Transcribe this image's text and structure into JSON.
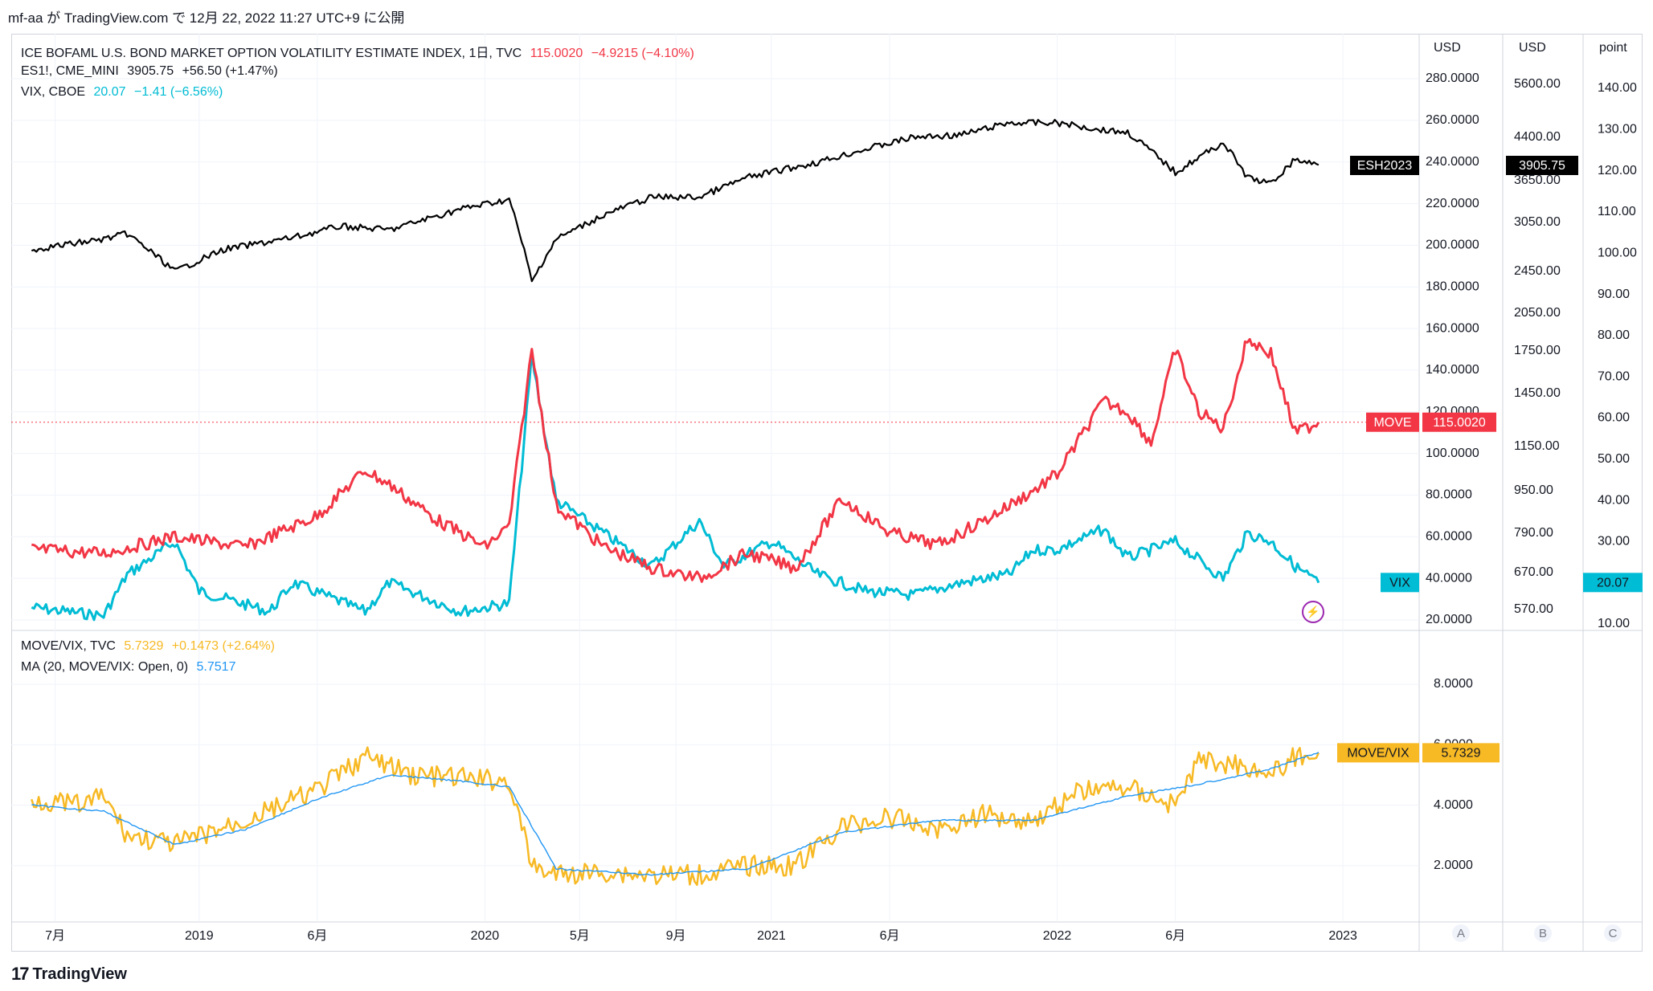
{
  "header": {
    "text": "mf-aa が TradingView.com で 12月 22, 2022 11:27 UTC+9 に公開"
  },
  "legend": {
    "move": {
      "name": "ICE BOFAML U.S. BOND MARKET OPTION VOLATILITY ESTIMATE INDEX, 1日, TVC",
      "value": "115.0020",
      "change": "−4.9215 (−4.10%)"
    },
    "es": {
      "name": "ES1!, CME_MINI",
      "value": "3905.75",
      "change": "+56.50 (+1.47%)"
    },
    "vix": {
      "name": "VIX, CBOE",
      "value": "20.07",
      "change": "−1.41 (−6.56%)"
    },
    "ratio": {
      "name": "MOVE/VIX, TVC",
      "value": "5.7329",
      "change": "+0.1473 (+2.64%)"
    },
    "ma": {
      "name": "MA (20, MOVE/VIX: Open, 0)",
      "value": "5.7517"
    }
  },
  "footer": {
    "brand": "TradingView"
  },
  "colors": {
    "es": "#000000",
    "move": "#f23645",
    "vix": "#00bcd4",
    "ratio": "#f7b924",
    "ma": "#2196f3",
    "grid": "#f0f3fa",
    "axis": "#d1d4dc"
  },
  "chart_data": [
    {
      "type": "line",
      "title": "",
      "scales": {
        "A": {
          "unit": "USD",
          "ticks": [
            "280.0000",
            "260.0000",
            "240.0000",
            "220.0000",
            "200.0000",
            "180.0000",
            "160.0000",
            "140.0000",
            "120.0000",
            "100.0000",
            "80.0000",
            "60.0000",
            "40.0000",
            "20.0000"
          ],
          "ylim": [
            20,
            280
          ]
        },
        "B": {
          "unit": "USD",
          "scale": "log",
          "ticks": [
            "5600.00",
            "4400.00",
            "3650.00",
            "3050.00",
            "2450.00",
            "2050.00",
            "1750.00",
            "1450.00",
            "1150.00",
            "950.00",
            "790.00",
            "670.00",
            "570.00"
          ]
        },
        "C": {
          "unit": "point",
          "ticks": [
            "140.00",
            "130.00",
            "120.00",
            "110.00",
            "100.00",
            "90.00",
            "80.00",
            "70.00",
            "60.00",
            "50.00",
            "40.00",
            "30.00",
            "20.00",
            "10.00"
          ],
          "ylim": [
            10,
            140
          ]
        }
      },
      "x_ticks": [
        "7月",
        "2019",
        "6月",
        "2020",
        "5月",
        "9月",
        "2021",
        "6月",
        "2022",
        "6月",
        "2023"
      ],
      "series": [
        {
          "name": "ESH2023",
          "scale": "B",
          "label": "3905.75",
          "x": [
            "2018-06",
            "2018-09",
            "2018-10",
            "2018-12",
            "2019-02",
            "2019-05",
            "2019-07",
            "2019-09",
            "2019-12",
            "2020-02",
            "2020-03",
            "2020-04",
            "2020-06",
            "2020-08",
            "2020-10",
            "2020-12",
            "2021-03",
            "2021-05",
            "2021-07",
            "2021-09",
            "2021-11",
            "2022-01",
            "2022-03",
            "2022-04",
            "2022-06",
            "2022-08",
            "2022-09",
            "2022-10",
            "2022-11",
            "2022-12"
          ],
          "values": [
            2700,
            2830,
            2900,
            2450,
            2700,
            2850,
            3000,
            2950,
            3230,
            3370,
            2340,
            2830,
            3150,
            3400,
            3400,
            3700,
            3950,
            4180,
            4400,
            4450,
            4700,
            4700,
            4550,
            4500,
            3780,
            4300,
            3700,
            3600,
            4000,
            3906
          ]
        },
        {
          "name": "MOVE",
          "scale": "A",
          "label": "115.0020",
          "x": [
            "2018-06",
            "2018-09",
            "2018-12",
            "2019-03",
            "2019-06",
            "2019-08",
            "2019-09",
            "2019-11",
            "2020-01",
            "2020-02",
            "2020-03",
            "2020-04",
            "2020-06",
            "2020-08",
            "2020-10",
            "2020-12",
            "2021-02",
            "2021-04",
            "2021-06",
            "2021-08",
            "2021-10",
            "2021-12",
            "2022-01",
            "2022-03",
            "2022-04",
            "2022-05",
            "2022-06",
            "2022-07",
            "2022-08",
            "2022-09",
            "2022-10",
            "2022-11",
            "2022-12"
          ],
          "values": [
            54,
            52,
            60,
            55,
            70,
            92,
            85,
            68,
            55,
            65,
            150,
            75,
            55,
            45,
            40,
            52,
            45,
            78,
            62,
            56,
            68,
            82,
            90,
            125,
            120,
            105,
            150,
            120,
            112,
            155,
            148,
            110,
            115
          ]
        },
        {
          "name": "VIX",
          "scale": "C",
          "label": "20.07",
          "x": [
            "2018-06",
            "2018-09",
            "2018-10",
            "2018-12",
            "2019-01",
            "2019-04",
            "2019-05",
            "2019-08",
            "2019-09",
            "2019-12",
            "2020-02",
            "2020-03",
            "2020-04",
            "2020-06",
            "2020-08",
            "2020-10",
            "2020-11",
            "2021-01",
            "2021-03",
            "2021-05",
            "2021-07",
            "2021-09",
            "2021-11",
            "2021-12",
            "2022-01",
            "2022-03",
            "2022-04",
            "2022-06",
            "2022-08",
            "2022-09",
            "2022-10",
            "2022-11",
            "2022-12"
          ],
          "values": [
            14,
            12,
            22,
            30,
            18,
            13,
            20,
            13,
            20,
            13,
            15,
            75,
            40,
            32,
            24,
            35,
            24,
            30,
            22,
            18,
            17,
            20,
            22,
            28,
            28,
            33,
            26,
            30,
            21,
            32,
            30,
            24,
            20
          ]
        }
      ]
    },
    {
      "type": "line",
      "title": "",
      "ticks": [
        "8.0000",
        "6.0000",
        "4.0000",
        "2.0000"
      ],
      "ylim": [
        0,
        9
      ],
      "series": [
        {
          "name": "MOVE/VIX",
          "label": "5.7329",
          "x": [
            "2018-06",
            "2018-08",
            "2018-09",
            "2018-10",
            "2018-12",
            "2019-03",
            "2019-06",
            "2019-08",
            "2019-10",
            "2019-12",
            "2020-02",
            "2020-03",
            "2020-04",
            "2020-06",
            "2020-08",
            "2020-10",
            "2020-12",
            "2021-02",
            "2021-04",
            "2021-06",
            "2021-08",
            "2021-10",
            "2021-12",
            "2022-02",
            "2022-04",
            "2022-06",
            "2022-07",
            "2022-09",
            "2022-10",
            "2022-11",
            "2022-12"
          ],
          "values": [
            4.2,
            4.0,
            4.3,
            3.0,
            2.7,
            3.5,
            4.5,
            5.6,
            5.0,
            4.9,
            4.8,
            2.0,
            1.7,
            1.8,
            1.7,
            1.7,
            2.0,
            2.0,
            3.3,
            3.6,
            3.2,
            3.7,
            3.5,
            4.5,
            4.6,
            4.0,
            5.5,
            5.3,
            5.0,
            5.6,
            5.73
          ]
        },
        {
          "name": "MA",
          "label": "5.7517",
          "x": [
            "2018-06",
            "2018-09",
            "2018-12",
            "2019-03",
            "2019-06",
            "2019-09",
            "2019-12",
            "2020-02",
            "2020-04",
            "2020-08",
            "2020-12",
            "2021-04",
            "2021-08",
            "2021-12",
            "2022-04",
            "2022-07",
            "2022-10",
            "2022-12"
          ],
          "values": [
            4.0,
            3.8,
            2.7,
            3.2,
            4.2,
            5.0,
            4.8,
            4.6,
            1.9,
            1.7,
            1.9,
            3.1,
            3.5,
            3.5,
            4.3,
            4.7,
            5.2,
            5.75
          ]
        }
      ]
    }
  ]
}
